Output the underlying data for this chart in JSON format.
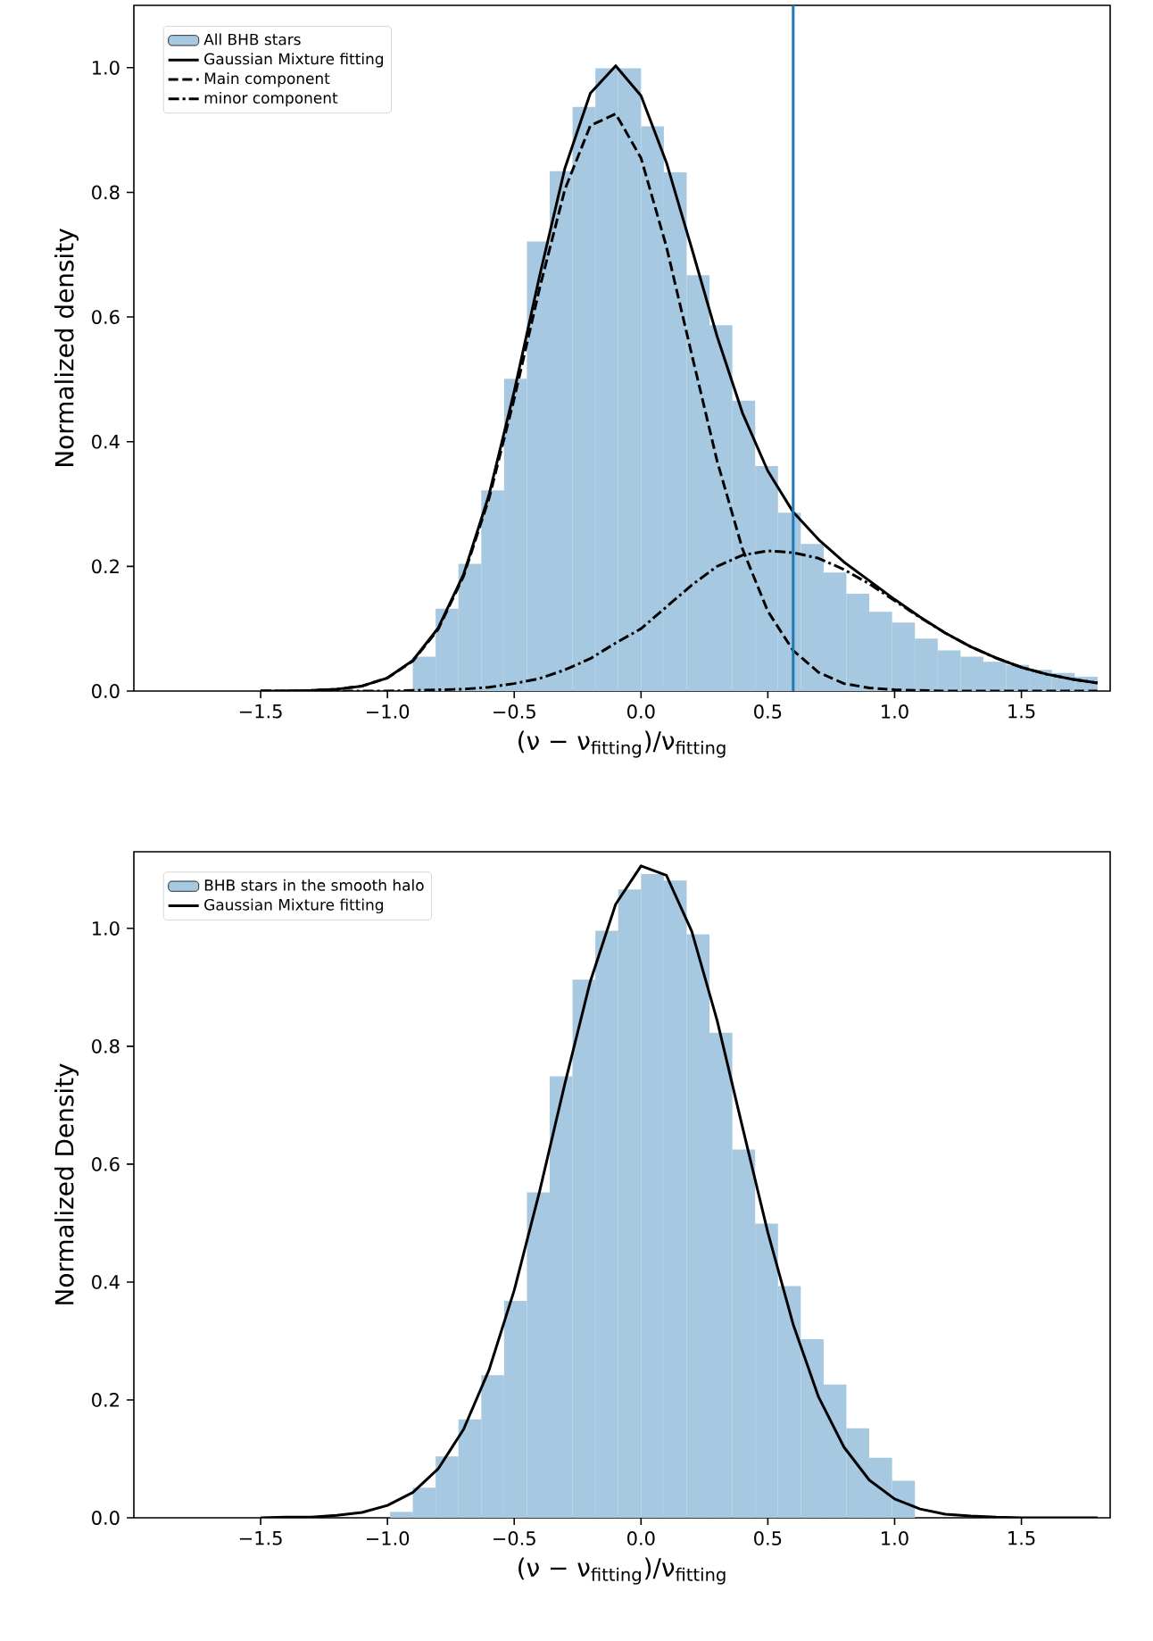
{
  "chart_data": [
    {
      "type": "histogram",
      "xlabel": "(ν − ν$_{fitting}$)/ν$_{fitting}$",
      "ylabel": "Normalized density",
      "legend": "top left",
      "xlim": [
        -2.0,
        1.85
      ],
      "ylim": [
        0,
        1.1
      ],
      "xticks": [
        {
          "value": -1.5,
          "label": "−1.5"
        },
        {
          "value": -1.0,
          "label": "−1.0"
        },
        {
          "value": -0.5,
          "label": "−0.5"
        },
        {
          "value": 0,
          "label": "0.0"
        },
        {
          "value": 0.5,
          "label": "0.5"
        },
        {
          "value": 1.0,
          "label": "1.0"
        },
        {
          "value": 1.5,
          "label": "1.5"
        }
      ],
      "yticks": [
        {
          "value": 0,
          "label": "0.0"
        },
        {
          "value": 0.2,
          "label": "0.2"
        },
        {
          "value": 0.4,
          "label": "0.4"
        },
        {
          "value": 0.6,
          "label": "0.6"
        },
        {
          "value": 0.8,
          "label": "0.8"
        },
        {
          "value": 1.0,
          "label": "1.0"
        }
      ],
      "bins": [
        -0.9,
        -0.81,
        -0.72,
        -0.63,
        -0.54,
        -0.45,
        -0.36,
        -0.27,
        -0.18,
        -0.09,
        0.0,
        0.09,
        0.18,
        0.27,
        0.36,
        0.45,
        0.54,
        0.63,
        0.72,
        0.81,
        0.9,
        0.99,
        1.08,
        1.17,
        1.26,
        1.35,
        1.44,
        1.53,
        1.62,
        1.71,
        1.8
      ],
      "ref_lines": [
        {
          "axis": "x",
          "value": 0.6,
          "color": "#1f77b4"
        }
      ],
      "series": [
        {
          "name": "All BHB stars",
          "type": "histogram",
          "color": "#a6c8e1",
          "values": [
            0.055,
            0.132,
            0.204,
            0.322,
            0.501,
            0.721,
            0.834,
            0.937,
            0.999,
            0.999,
            0.906,
            0.832,
            0.667,
            0.587,
            0.466,
            0.361,
            0.286,
            0.236,
            0.19,
            0.156,
            0.127,
            0.11,
            0.084,
            0.065,
            0.055,
            0.047,
            0.042,
            0.034,
            0.029,
            0.023
          ]
        },
        {
          "name": "Gaussian Mixture fitting",
          "type": "line",
          "color": "#000000",
          "line_style": "solid",
          "x": [
            -1.5,
            -1.4,
            -1.3,
            -1.2,
            -1.1,
            -1.0,
            -0.9,
            -0.8,
            -0.7,
            -0.6,
            -0.5,
            -0.4,
            -0.3,
            -0.2,
            -0.1,
            0.0,
            0.1,
            0.2,
            0.3,
            0.4,
            0.5,
            0.6,
            0.7,
            0.8,
            0.9,
            1.0,
            1.1,
            1.2,
            1.3,
            1.4,
            1.5,
            1.6,
            1.7,
            1.8
          ],
          "values": [
            0.0,
            0.0,
            0.001,
            0.003,
            0.008,
            0.021,
            0.049,
            0.101,
            0.187,
            0.314,
            0.481,
            0.666,
            0.839,
            0.959,
            1.003,
            0.955,
            0.848,
            0.71,
            0.569,
            0.446,
            0.353,
            0.287,
            0.243,
            0.207,
            0.177,
            0.147,
            0.119,
            0.093,
            0.071,
            0.053,
            0.038,
            0.027,
            0.019,
            0.013
          ]
        },
        {
          "name": "Main component",
          "type": "line",
          "color": "#000000",
          "line_style": "dashed",
          "x": [
            -1.5,
            -1.4,
            -1.3,
            -1.2,
            -1.1,
            -1.0,
            -0.9,
            -0.8,
            -0.7,
            -0.6,
            -0.5,
            -0.4,
            -0.3,
            -0.2,
            -0.1,
            0.0,
            0.1,
            0.2,
            0.3,
            0.4,
            0.5,
            0.6,
            0.7,
            0.8,
            0.9,
            1.0,
            1.1,
            1.2,
            1.3,
            1.4,
            1.5,
            1.6,
            1.7,
            1.8
          ],
          "values": [
            0.0,
            0.0,
            0.001,
            0.003,
            0.008,
            0.021,
            0.048,
            0.099,
            0.184,
            0.308,
            0.469,
            0.646,
            0.805,
            0.907,
            0.926,
            0.855,
            0.713,
            0.54,
            0.369,
            0.228,
            0.128,
            0.065,
            0.03,
            0.012,
            0.005,
            0.002,
            0.001,
            0.0,
            0.0,
            0.0,
            0.0,
            0.0,
            0.0,
            0.0
          ]
        },
        {
          "name": "minor component",
          "type": "line",
          "color": "#000000",
          "line_style": "dashdot",
          "x": [
            -1.5,
            -1.4,
            -1.3,
            -1.2,
            -1.1,
            -1.0,
            -0.9,
            -0.8,
            -0.7,
            -0.6,
            -0.5,
            -0.4,
            -0.3,
            -0.2,
            -0.1,
            0.0,
            0.1,
            0.2,
            0.3,
            0.4,
            0.5,
            0.6,
            0.7,
            0.8,
            0.9,
            1.0,
            1.1,
            1.2,
            1.3,
            1.4,
            1.5,
            1.6,
            1.7,
            1.8
          ],
          "values": [
            0.0,
            0.0,
            0.0,
            0.0,
            0.0,
            0.0,
            0.001,
            0.002,
            0.003,
            0.006,
            0.012,
            0.02,
            0.034,
            0.052,
            0.077,
            0.1,
            0.135,
            0.17,
            0.2,
            0.218,
            0.225,
            0.222,
            0.213,
            0.195,
            0.172,
            0.145,
            0.118,
            0.093,
            0.071,
            0.053,
            0.038,
            0.027,
            0.019,
            0.013
          ]
        }
      ]
    },
    {
      "type": "histogram",
      "xlabel": "(ν − ν$_{fitting}$)/ν$_{fitting}$",
      "ylabel": "Normalized Density",
      "legend": "top left",
      "xlim": [
        -2.0,
        1.85
      ],
      "ylim": [
        0,
        1.13
      ],
      "xticks": [
        {
          "value": -1.5,
          "label": "−1.5"
        },
        {
          "value": -1.0,
          "label": "−1.0"
        },
        {
          "value": -0.5,
          "label": "−0.5"
        },
        {
          "value": 0,
          "label": "0.0"
        },
        {
          "value": 0.5,
          "label": "0.5"
        },
        {
          "value": 1.0,
          "label": "1.0"
        },
        {
          "value": 1.5,
          "label": "1.5"
        }
      ],
      "yticks": [
        {
          "value": 0,
          "label": "0.0"
        },
        {
          "value": 0.2,
          "label": "0.2"
        },
        {
          "value": 0.4,
          "label": "0.4"
        },
        {
          "value": 0.6,
          "label": "0.6"
        },
        {
          "value": 0.8,
          "label": "0.8"
        },
        {
          "value": 1.0,
          "label": "1.0"
        }
      ],
      "bins": [
        -0.99,
        -0.9,
        -0.81,
        -0.72,
        -0.63,
        -0.54,
        -0.45,
        -0.36,
        -0.27,
        -0.18,
        -0.09,
        0.0,
        0.09,
        0.18,
        0.27,
        0.36,
        0.45,
        0.54,
        0.63,
        0.72,
        0.81,
        0.9,
        0.99,
        1.08
      ],
      "series": [
        {
          "name": "BHB stars in the smooth halo",
          "type": "histogram",
          "color": "#a6c8e1",
          "values": [
            0.01,
            0.051,
            0.104,
            0.167,
            0.242,
            0.368,
            0.552,
            0.749,
            0.913,
            0.996,
            1.066,
            1.092,
            1.081,
            0.99,
            0.823,
            0.625,
            0.499,
            0.393,
            0.303,
            0.226,
            0.152,
            0.102,
            0.063
          ]
        },
        {
          "name": "Gaussian Mixture fitting",
          "type": "line",
          "color": "#000000",
          "line_style": "solid",
          "x": [
            -1.5,
            -1.4,
            -1.3,
            -1.2,
            -1.1,
            -1.0,
            -0.9,
            -0.8,
            -0.7,
            -0.6,
            -0.5,
            -0.4,
            -0.3,
            -0.2,
            -0.1,
            0.0,
            0.1,
            0.2,
            0.3,
            0.4,
            0.5,
            0.6,
            0.7,
            0.8,
            0.9,
            1.0,
            1.1,
            1.2,
            1.3,
            1.4,
            1.5,
            1.6,
            1.7,
            1.8
          ],
          "values": [
            0.0,
            0.001,
            0.001,
            0.004,
            0.009,
            0.021,
            0.043,
            0.083,
            0.15,
            0.25,
            0.386,
            0.554,
            0.737,
            0.91,
            1.041,
            1.106,
            1.09,
            0.995,
            0.844,
            0.663,
            0.484,
            0.328,
            0.205,
            0.12,
            0.064,
            0.032,
            0.015,
            0.006,
            0.003,
            0.001,
            0.0,
            0.0,
            0.0,
            0.0
          ]
        }
      ]
    }
  ]
}
